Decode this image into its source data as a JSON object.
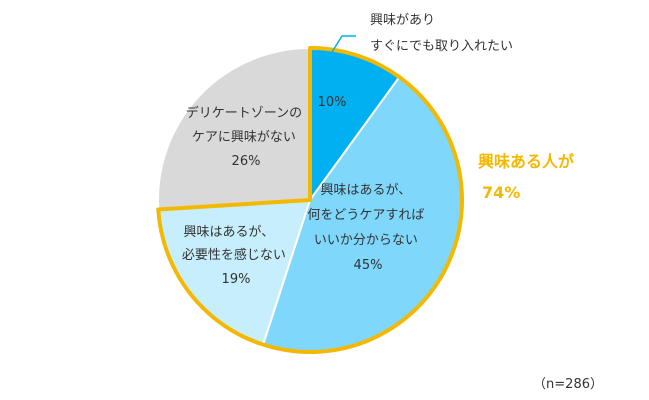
{
  "chart_data": {
    "type": "pie",
    "title": "",
    "slices": [
      {
        "lines": [
          "10%"
        ],
        "value": 10,
        "color": "#00b0f0"
      },
      {
        "lines": [
          "興味はあるが、",
          "何をどうケアすれば",
          "いいか分からない",
          "45%"
        ],
        "value": 45,
        "color": "#7fd7fb"
      },
      {
        "lines": [
          "興味はあるが、",
          "必要性を感じない",
          "19%"
        ],
        "value": 19,
        "color": "#c6eefc"
      },
      {
        "lines": [
          "デリケートゾーンの",
          "ケアに興味がない",
          "26%"
        ],
        "value": 26,
        "color": "#d9d9d9"
      }
    ],
    "callout_lines": [
      "興味があり",
      "すぐにでも取り入れたい"
    ],
    "highlight": {
      "lines": [
        "興味ある人が",
        "74%"
      ],
      "value": 74,
      "color": "#f5b800"
    },
    "note": "（n=286）"
  }
}
